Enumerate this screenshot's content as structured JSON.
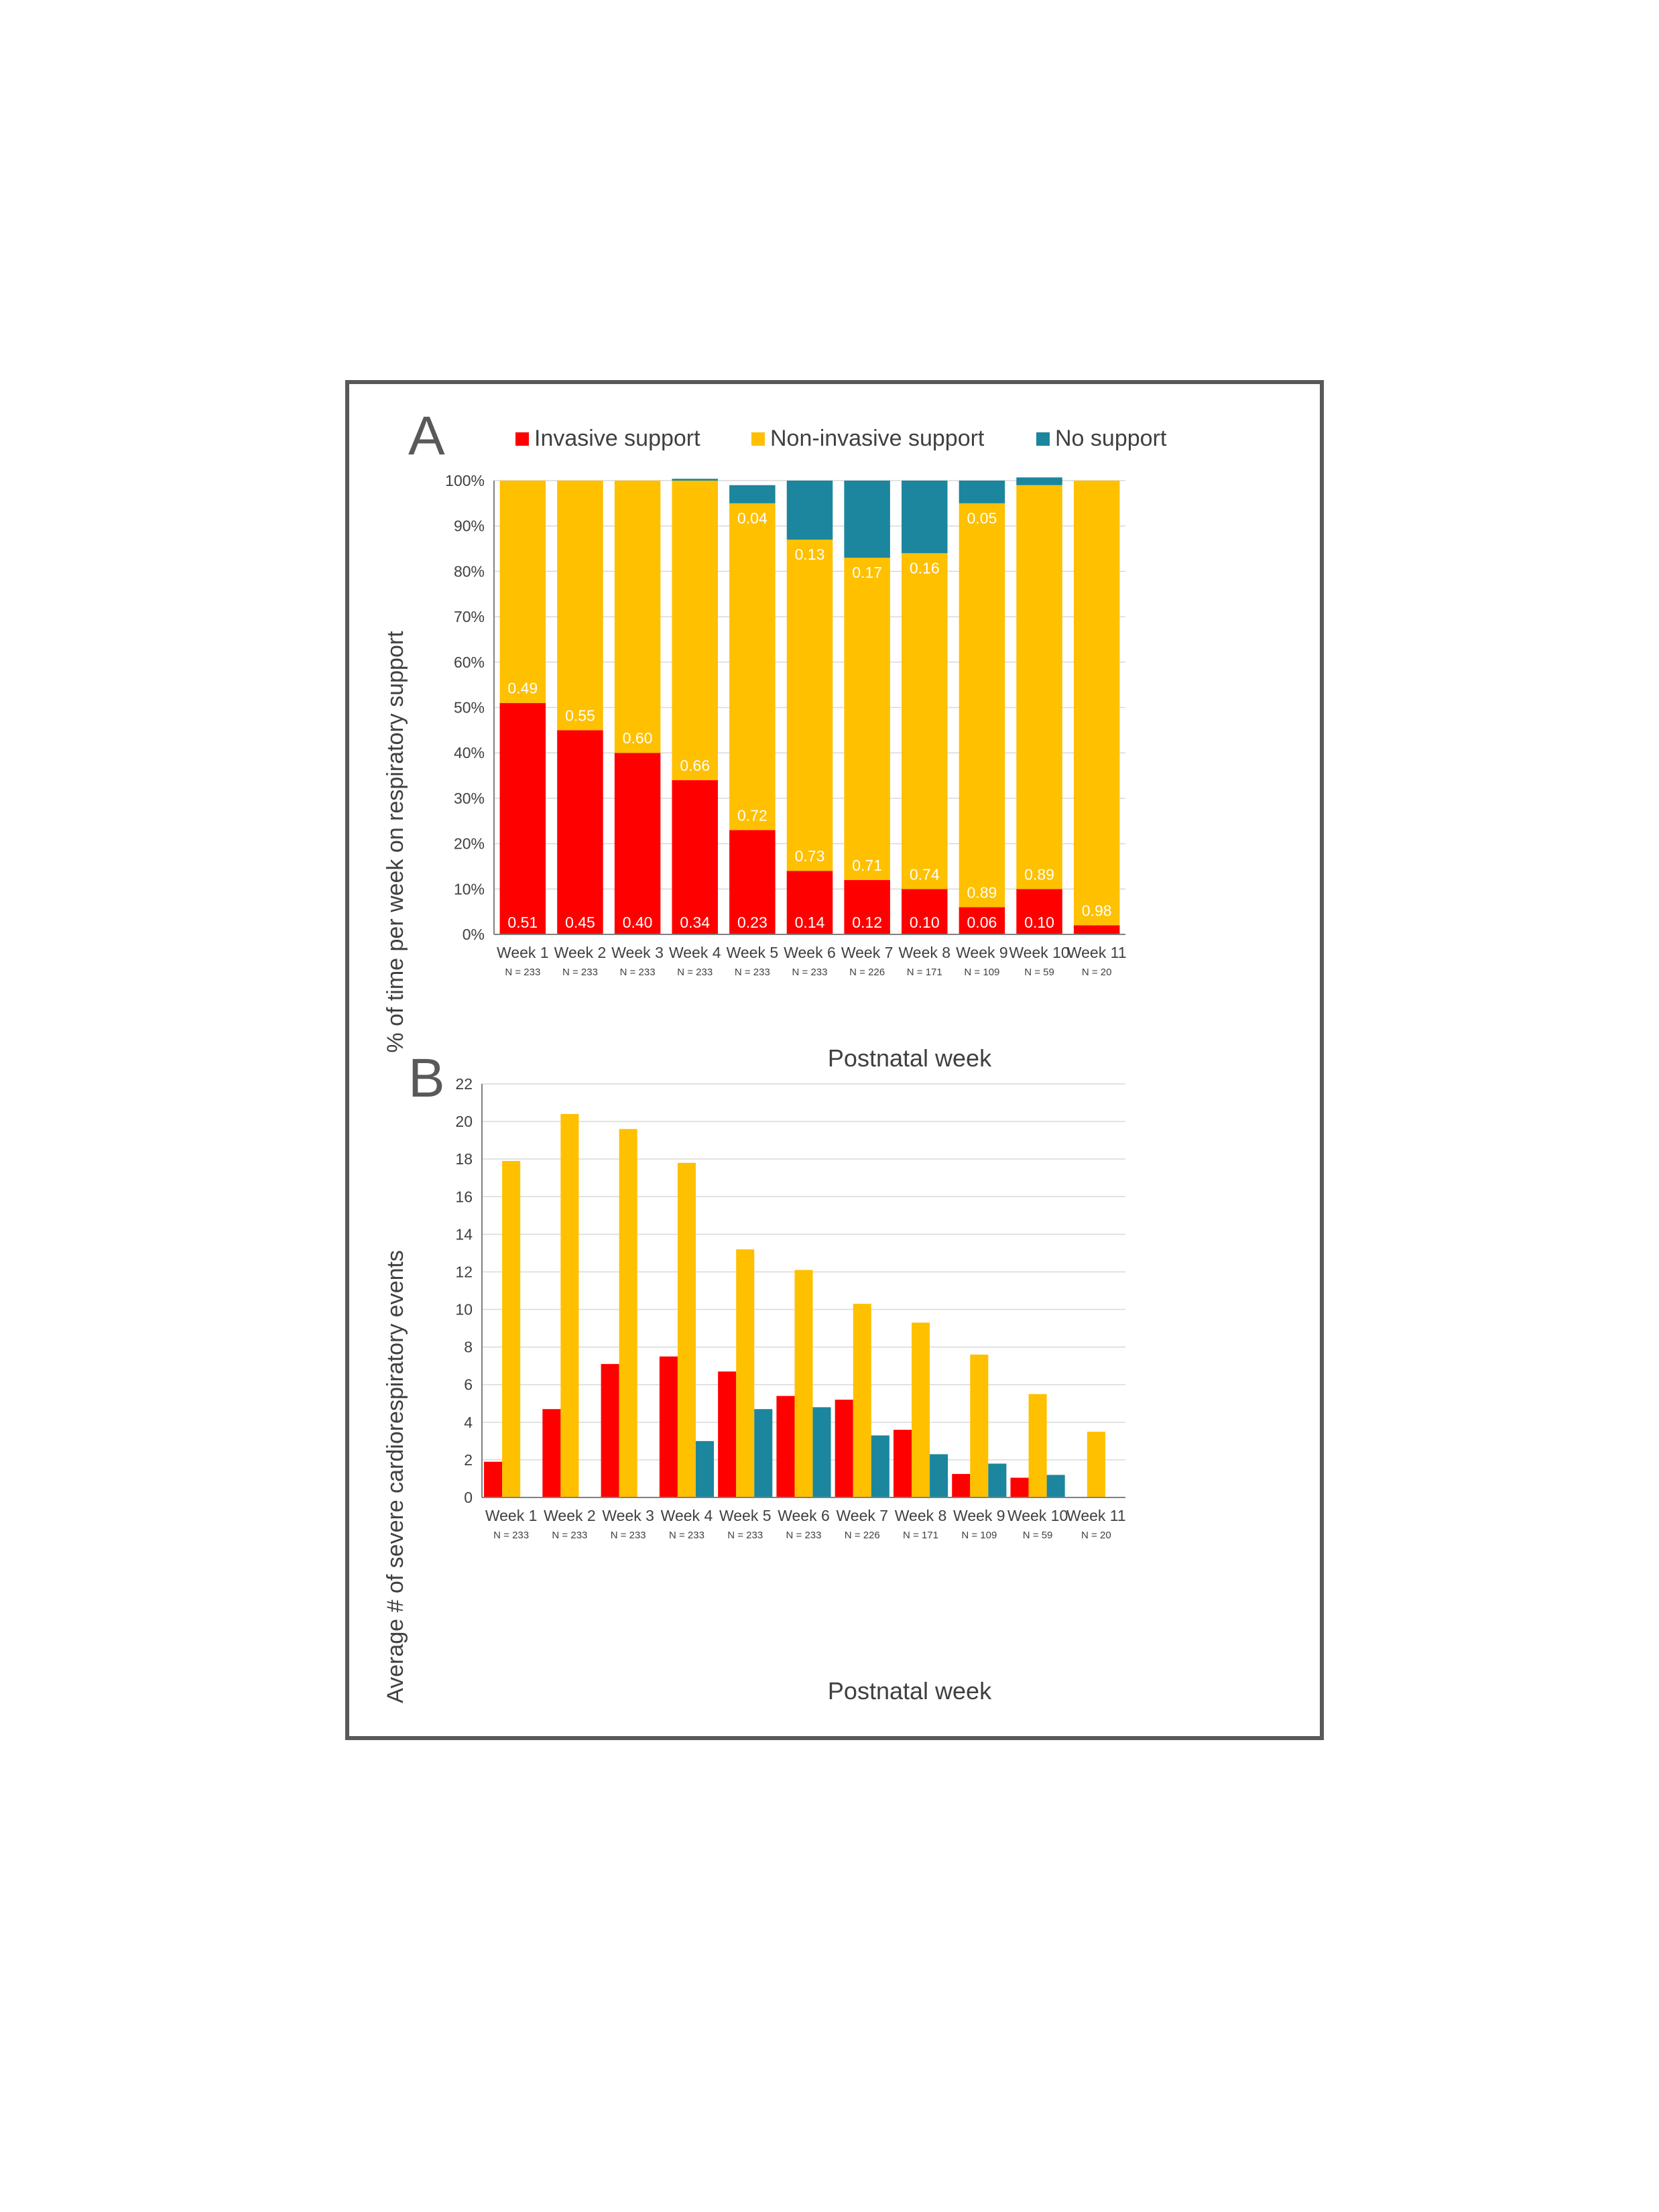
{
  "colors": {
    "invasive": "#FF0000",
    "non_invasive": "#FFC000",
    "no_support": "#1B869E",
    "axis_text": "#404040",
    "grid": "#D9D9D9",
    "axis_line": "#808080",
    "frame": "#595959"
  },
  "panel_a": {
    "panel_label": "A",
    "legend": [
      "Invasive support",
      "Non-invasive support",
      "No support"
    ]
  },
  "panel_b": {
    "panel_label": "B"
  },
  "chart_data": [
    {
      "type": "bar",
      "stacked": true,
      "categories": [
        "Week 1",
        "Week 2",
        "Week 3",
        "Week 4",
        "Week 5",
        "Week 6",
        "Week 7",
        "Week 8",
        "Week 9",
        "Week 10",
        "Week 11"
      ],
      "sample_sizes": [
        "N = 233",
        "N = 233",
        "N = 233",
        "N = 233",
        "N = 233",
        "N = 233",
        "N = 226",
        "N = 171",
        "N = 109",
        "N = 59",
        "N = 20"
      ],
      "series": [
        {
          "name": "Invasive support",
          "values": [
            0.51,
            0.45,
            0.4,
            0.34,
            0.23,
            0.14,
            0.12,
            0.1,
            0.06,
            0.1,
            0.02
          ],
          "labels": [
            "0.51",
            "0.45",
            "0.40",
            "0.34",
            "0.23",
            "0.14",
            "0.12",
            "0.10",
            "0.06",
            "0.10",
            ""
          ]
        },
        {
          "name": "Non-invasive support",
          "values": [
            0.49,
            0.55,
            0.6,
            0.66,
            0.72,
            0.73,
            0.71,
            0.74,
            0.89,
            0.89,
            0.98
          ],
          "labels": [
            "0.49",
            "0.55",
            "0.60",
            "0.66",
            "0.72",
            "0.73",
            "0.71",
            "0.74",
            "0.89",
            "0.89",
            "0.98"
          ]
        },
        {
          "name": "No support",
          "values": [
            0,
            0,
            0,
            0.004,
            0.04,
            0.13,
            0.17,
            0.16,
            0.05,
            0.017,
            0
          ],
          "labels": [
            "",
            "",
            "",
            "",
            "0.04",
            "0.13",
            "0.17",
            "0.16",
            "0.05",
            "",
            ""
          ]
        }
      ],
      "ylabel": "% of time per week on respiratory support",
      "xlabel": "Postnatal week",
      "ylim": [
        0,
        1
      ],
      "yticks": [
        "0%",
        "10%",
        "20%",
        "30%",
        "40%",
        "50%",
        "60%",
        "70%",
        "80%",
        "90%",
        "100%"
      ],
      "grid": true,
      "legend_position": "top"
    },
    {
      "type": "bar",
      "stacked": false,
      "categories": [
        "Week 1",
        "Week 2",
        "Week 3",
        "Week 4",
        "Week 5",
        "Week 6",
        "Week 7",
        "Week 8",
        "Week 9",
        "Week 10",
        "Week 11"
      ],
      "sample_sizes": [
        "N = 233",
        "N = 233",
        "N = 233",
        "N = 233",
        "N = 233",
        "N = 233",
        "N = 226",
        "N = 171",
        "N = 109",
        "N = 59",
        "N = 20"
      ],
      "series": [
        {
          "name": "Invasive support",
          "values": [
            1.9,
            4.7,
            7.1,
            7.5,
            6.7,
            5.4,
            5.2,
            3.6,
            1.25,
            1.05,
            0
          ]
        },
        {
          "name": "Non-invasive support",
          "values": [
            17.9,
            20.4,
            19.6,
            17.8,
            13.2,
            12.1,
            10.3,
            9.3,
            7.6,
            5.5,
            3.5
          ]
        },
        {
          "name": "No support",
          "values": [
            0,
            0,
            0,
            3.0,
            4.7,
            4.8,
            3.3,
            2.3,
            1.8,
            1.2,
            0
          ]
        }
      ],
      "ylabel": "Average # of severe cardiorespiratory events",
      "xlabel": "Postnatal week",
      "ylim": [
        0,
        22
      ],
      "yticks": [
        "0",
        "2",
        "4",
        "6",
        "8",
        "10",
        "12",
        "14",
        "16",
        "18",
        "20",
        "22"
      ],
      "grid": true
    }
  ]
}
